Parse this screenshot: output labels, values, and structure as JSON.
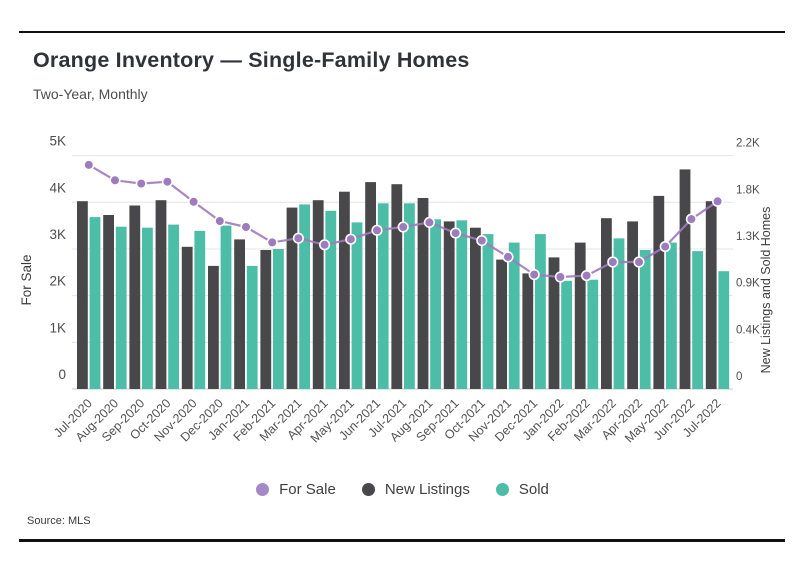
{
  "page": {
    "title": "Orange Inventory — Single-Family Homes",
    "subtitle": "Two-Year, Monthly",
    "source": "Source: MLS"
  },
  "colors": {
    "for_sale_purple": "#9e7abe",
    "legend_purple": "#a588c8",
    "new_listings_dark": "#48484b",
    "sold_teal": "#4cbda7",
    "gridline": "#e4e4e4",
    "baseline": "#c9c9c9",
    "tick_text": "#4d4d4d",
    "axis_title_text": "#3c3c3c"
  },
  "chart_data": {
    "type": "combo-bar-line",
    "title": "Orange Inventory — Single-Family Homes",
    "subtitle": "Two-Year, Monthly",
    "grid": true,
    "legend_position": "bottom",
    "categories": [
      "Jul-2020",
      "Aug-2020",
      "Sep-2020",
      "Oct-2020",
      "Nov-2020",
      "Dec-2020",
      "Jan-2021",
      "Feb-2021",
      "Mar-2021",
      "Apr-2021",
      "May-2021",
      "Jun-2021",
      "Jul-2021",
      "Aug-2021",
      "Sep-2021",
      "Oct-2021",
      "Nov-2021",
      "Dec-2021",
      "Jan-2022",
      "Feb-2022",
      "Mar-2022",
      "Apr-2022",
      "May-2022",
      "Jun-2022",
      "Jul-2022"
    ],
    "left_axis": {
      "label": "For Sale",
      "min": 0,
      "max": 5000,
      "ticks": [
        "0",
        "1K",
        "2K",
        "3K",
        "4K",
        "5K"
      ]
    },
    "right_axis": {
      "label": "New Listings and Sold Homes",
      "min": 0,
      "max": 2200,
      "ticks": [
        "0",
        "0.4K",
        "0.9K",
        "1.3K",
        "1.8K",
        "2.2K"
      ]
    },
    "series": [
      {
        "name": "For Sale",
        "type": "line",
        "axis": "left",
        "color": "#9e7abe",
        "values": [
          4800,
          4470,
          4400,
          4440,
          4010,
          3600,
          3470,
          3140,
          3230,
          3090,
          3210,
          3400,
          3470,
          3570,
          3340,
          3180,
          2830,
          2450,
          2400,
          2430,
          2720,
          2720,
          3050,
          3640,
          4020
        ]
      },
      {
        "name": "New Listings",
        "type": "bar",
        "axis": "right",
        "color": "#48484b",
        "values": [
          1770,
          1640,
          1730,
          1780,
          1340,
          1160,
          1410,
          1310,
          1710,
          1780,
          1860,
          1950,
          1930,
          1800,
          1580,
          1520,
          1220,
          1090,
          1240,
          1380,
          1610,
          1580,
          1820,
          2070,
          1770
        ]
      },
      {
        "name": "Sold",
        "type": "bar",
        "axis": "right",
        "color": "#4cbda7",
        "values": [
          1620,
          1530,
          1520,
          1550,
          1490,
          1540,
          1160,
          1320,
          1740,
          1680,
          1570,
          1750,
          1750,
          1600,
          1590,
          1460,
          1380,
          1460,
          1020,
          1030,
          1420,
          1310,
          1380,
          1300,
          1110
        ]
      }
    ]
  }
}
